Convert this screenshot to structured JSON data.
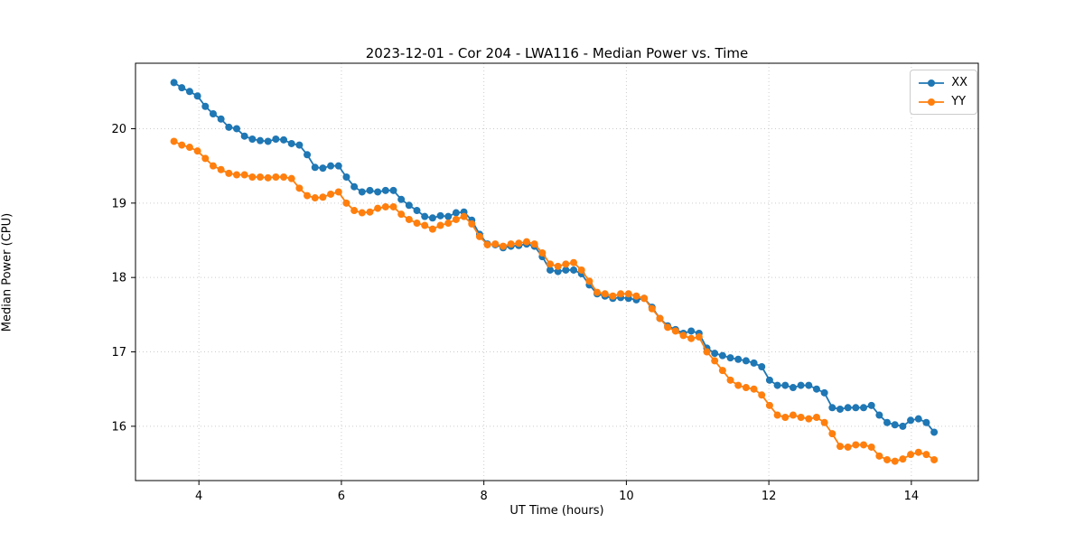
{
  "figure": {
    "background": "#ffffff"
  },
  "chart_data": {
    "type": "line",
    "title": "2023-12-01 - Cor 204 - LWA116 - Median Power vs. Time",
    "xlabel": "UT Time (hours)",
    "ylabel": "Median Power (CPU)",
    "xlim": [
      3.11,
      14.94
    ],
    "ylim": [
      15.27,
      20.88
    ],
    "xticks": [
      4,
      6,
      8,
      10,
      12,
      14
    ],
    "yticks": [
      16,
      17,
      18,
      19,
      20
    ],
    "grid": true,
    "legend_position": "upper right",
    "x": [
      3.65,
      3.76,
      3.87,
      3.98,
      4.09,
      4.2,
      4.31,
      4.42,
      4.53,
      4.64,
      4.75,
      4.86,
      4.97,
      5.08,
      5.19,
      5.3,
      5.41,
      5.52,
      5.63,
      5.74,
      5.85,
      5.96,
      6.07,
      6.18,
      6.29,
      6.4,
      6.51,
      6.62,
      6.73,
      6.84,
      6.95,
      7.06,
      7.17,
      7.28,
      7.39,
      7.5,
      7.61,
      7.72,
      7.83,
      7.94,
      8.05,
      8.16,
      8.27,
      8.38,
      8.49,
      8.6,
      8.71,
      8.82,
      8.93,
      9.04,
      9.15,
      9.26,
      9.37,
      9.48,
      9.59,
      9.7,
      9.81,
      9.92,
      10.03,
      10.14,
      10.25,
      10.36,
      10.47,
      10.58,
      10.69,
      10.8,
      10.91,
      11.02,
      11.13,
      11.24,
      11.35,
      11.46,
      11.57,
      11.68,
      11.79,
      11.9,
      12.01,
      12.12,
      12.23,
      12.34,
      12.45,
      12.56,
      12.67,
      12.78,
      12.89,
      13.0,
      13.11,
      13.22,
      13.33,
      13.44,
      13.55,
      13.66,
      13.77,
      13.88,
      13.99,
      14.1,
      14.21,
      14.32
    ],
    "series": [
      {
        "name": "XX",
        "color": "#1f77b4",
        "values": [
          20.62,
          20.55,
          20.5,
          20.44,
          20.3,
          20.2,
          20.13,
          20.02,
          20.0,
          19.9,
          19.86,
          19.84,
          19.83,
          19.86,
          19.85,
          19.8,
          19.78,
          19.65,
          19.48,
          19.47,
          19.5,
          19.5,
          19.35,
          19.22,
          19.15,
          19.17,
          19.15,
          19.17,
          19.17,
          19.05,
          18.97,
          18.9,
          18.82,
          18.8,
          18.83,
          18.82,
          18.87,
          18.88,
          18.77,
          18.58,
          18.45,
          18.44,
          18.4,
          18.42,
          18.43,
          18.45,
          18.42,
          18.28,
          18.1,
          18.08,
          18.1,
          18.1,
          18.05,
          17.9,
          17.78,
          17.75,
          17.72,
          17.73,
          17.72,
          17.7,
          17.72,
          17.6,
          17.45,
          17.35,
          17.3,
          17.25,
          17.28,
          17.25,
          17.05,
          16.98,
          16.95,
          16.92,
          16.9,
          16.88,
          16.85,
          16.8,
          16.62,
          16.55,
          16.55,
          16.52,
          16.55,
          16.55,
          16.5,
          16.45,
          16.25,
          16.23,
          16.25,
          16.25,
          16.25,
          16.28,
          16.15,
          16.05,
          16.02,
          16.0,
          16.08,
          16.1,
          16.05,
          15.92
        ]
      },
      {
        "name": "YY",
        "color": "#ff7f0e",
        "values": [
          19.83,
          19.78,
          19.75,
          19.7,
          19.6,
          19.5,
          19.45,
          19.4,
          19.38,
          19.38,
          19.35,
          19.35,
          19.34,
          19.35,
          19.35,
          19.33,
          19.2,
          19.1,
          19.07,
          19.08,
          19.12,
          19.15,
          19.0,
          18.9,
          18.87,
          18.88,
          18.93,
          18.95,
          18.95,
          18.85,
          18.78,
          18.73,
          18.7,
          18.65,
          18.7,
          18.73,
          18.78,
          18.82,
          18.72,
          18.55,
          18.44,
          18.45,
          18.42,
          18.45,
          18.46,
          18.48,
          18.45,
          18.33,
          18.18,
          18.15,
          18.18,
          18.2,
          18.1,
          17.95,
          17.8,
          17.78,
          17.75,
          17.78,
          17.78,
          17.75,
          17.72,
          17.58,
          17.45,
          17.33,
          17.28,
          17.22,
          17.18,
          17.2,
          17.0,
          16.88,
          16.75,
          16.62,
          16.55,
          16.52,
          16.5,
          16.42,
          16.28,
          16.15,
          16.12,
          16.15,
          16.12,
          16.1,
          16.12,
          16.05,
          15.9,
          15.73,
          15.72,
          15.75,
          15.75,
          15.72,
          15.6,
          15.55,
          15.53,
          15.56,
          15.62,
          15.65,
          15.62,
          15.55
        ]
      }
    ],
    "style": {
      "grid_color": "#cccccc",
      "spine_color": "#000000",
      "marker": "circle",
      "marker_radius": 4
    }
  }
}
